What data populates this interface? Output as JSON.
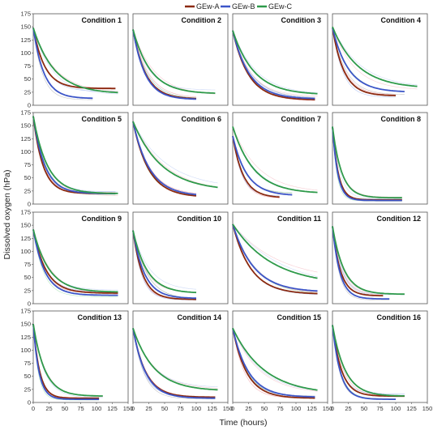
{
  "chart_data": {
    "type": "line",
    "xlabel": "Time (hours)",
    "ylabel": "Dissolved oxygen (hPa)",
    "xlim": [
      0,
      150
    ],
    "ylim": [
      0,
      175
    ],
    "x_ticks": [
      0,
      25,
      50,
      75,
      100,
      125,
      150
    ],
    "y_ticks": [
      0,
      25,
      50,
      75,
      100,
      125,
      150,
      175
    ],
    "grid": false,
    "legend_position": "top-center",
    "legend": [
      {
        "name": "GEw-A",
        "color": "#8b2a10"
      },
      {
        "name": "GEw-B",
        "color": "#3c55c8"
      },
      {
        "name": "GEw-C",
        "color": "#2e9a4a"
      }
    ],
    "panels": [
      {
        "title": "Condition 1",
        "series": [
          {
            "name": "GEw-A",
            "start": 148,
            "plateau": 32,
            "k": 0.055,
            "end_x": 130
          },
          {
            "name": "GEw-B",
            "start": 148,
            "plateau": 13,
            "k": 0.06,
            "end_x": 95
          },
          {
            "name": "GEw-C",
            "start": 148,
            "plateau": 22,
            "k": 0.03,
            "end_x": 135
          }
        ]
      },
      {
        "title": "Condition 2",
        "series": [
          {
            "name": "GEw-A",
            "start": 145,
            "plateau": 12,
            "k": 0.05,
            "end_x": 100
          },
          {
            "name": "GEw-B",
            "start": 145,
            "plateau": 11,
            "k": 0.052,
            "end_x": 100
          },
          {
            "name": "GEw-C",
            "start": 145,
            "plateau": 22,
            "k": 0.036,
            "end_x": 130
          }
        ]
      },
      {
        "title": "Condition 3",
        "series": [
          {
            "name": "GEw-A",
            "start": 143,
            "plateau": 10,
            "k": 0.04,
            "end_x": 130
          },
          {
            "name": "GEw-B",
            "start": 143,
            "plateau": 12,
            "k": 0.038,
            "end_x": 130
          },
          {
            "name": "GEw-C",
            "start": 143,
            "plateau": 20,
            "k": 0.03,
            "end_x": 135
          }
        ]
      },
      {
        "title": "Condition 4",
        "series": [
          {
            "name": "GEw-A",
            "start": 148,
            "plateau": 18,
            "k": 0.055,
            "end_x": 100
          },
          {
            "name": "GEw-B",
            "start": 148,
            "plateau": 25,
            "k": 0.04,
            "end_x": 115
          },
          {
            "name": "GEw-C",
            "start": 150,
            "plateau": 32,
            "k": 0.025,
            "end_x": 135
          }
        ]
      },
      {
        "title": "Condition 5",
        "series": [
          {
            "name": "GEw-A",
            "start": 168,
            "plateau": 20,
            "k": 0.065,
            "end_x": 130
          },
          {
            "name": "GEw-B",
            "start": 168,
            "plateau": 20,
            "k": 0.055,
            "end_x": 130
          },
          {
            "name": "GEw-C",
            "start": 168,
            "plateau": 20,
            "k": 0.045,
            "end_x": 135
          }
        ]
      },
      {
        "title": "Condition 6",
        "series": [
          {
            "name": "GEw-A",
            "start": 158,
            "plateau": 13,
            "k": 0.04,
            "end_x": 100
          },
          {
            "name": "GEw-B",
            "start": 158,
            "plateau": 15,
            "k": 0.038,
            "end_x": 100
          },
          {
            "name": "GEw-C",
            "start": 158,
            "plateau": 25,
            "k": 0.022,
            "end_x": 135
          }
        ]
      },
      {
        "title": "Condition 7",
        "series": [
          {
            "name": "GEw-A",
            "start": 130,
            "plateau": 12,
            "k": 0.06,
            "end_x": 75
          },
          {
            "name": "GEw-B",
            "start": 130,
            "plateau": 16,
            "k": 0.045,
            "end_x": 95
          },
          {
            "name": "GEw-C",
            "start": 148,
            "plateau": 20,
            "k": 0.03,
            "end_x": 135
          }
        ]
      },
      {
        "title": "Condition 8",
        "series": [
          {
            "name": "GEw-A",
            "start": 148,
            "plateau": 8,
            "k": 0.11,
            "end_x": 110
          },
          {
            "name": "GEw-B",
            "start": 148,
            "plateau": 7,
            "k": 0.12,
            "end_x": 110
          },
          {
            "name": "GEw-C",
            "start": 148,
            "plateau": 12,
            "k": 0.07,
            "end_x": 110
          }
        ]
      },
      {
        "title": "Condition 9",
        "series": [
          {
            "name": "GEw-A",
            "start": 142,
            "plateau": 20,
            "k": 0.05,
            "end_x": 135
          },
          {
            "name": "GEw-B",
            "start": 142,
            "plateau": 16,
            "k": 0.055,
            "end_x": 135
          },
          {
            "name": "GEw-C",
            "start": 142,
            "plateau": 22,
            "k": 0.04,
            "end_x": 135
          }
        ]
      },
      {
        "title": "Condition 10",
        "series": [
          {
            "name": "GEw-A",
            "start": 140,
            "plateau": 8,
            "k": 0.065,
            "end_x": 100
          },
          {
            "name": "GEw-B",
            "start": 140,
            "plateau": 10,
            "k": 0.055,
            "end_x": 100
          },
          {
            "name": "GEw-C",
            "start": 140,
            "plateau": 20,
            "k": 0.045,
            "end_x": 100
          }
        ]
      },
      {
        "title": "Condition 11",
        "series": [
          {
            "name": "GEw-A",
            "start": 152,
            "plateau": 18,
            "k": 0.035,
            "end_x": 135
          },
          {
            "name": "GEw-B",
            "start": 152,
            "plateau": 22,
            "k": 0.03,
            "end_x": 135
          },
          {
            "name": "GEw-C",
            "start": 152,
            "plateau": 35,
            "k": 0.016,
            "end_x": 135
          }
        ]
      },
      {
        "title": "Condition 12",
        "series": [
          {
            "name": "GEw-A",
            "start": 148,
            "plateau": 15,
            "k": 0.08,
            "end_x": 80
          },
          {
            "name": "GEw-B",
            "start": 148,
            "plateau": 9,
            "k": 0.085,
            "end_x": 90
          },
          {
            "name": "GEw-C",
            "start": 148,
            "plateau": 18,
            "k": 0.055,
            "end_x": 115
          }
        ]
      },
      {
        "title": "Condition 13",
        "series": [
          {
            "name": "GEw-A",
            "start": 150,
            "plateau": 8,
            "k": 0.1,
            "end_x": 105
          },
          {
            "name": "GEw-B",
            "start": 150,
            "plateau": 6,
            "k": 0.11,
            "end_x": 105
          },
          {
            "name": "GEw-C",
            "start": 150,
            "plateau": 12,
            "k": 0.055,
            "end_x": 110
          }
        ]
      },
      {
        "title": "Condition 14",
        "series": [
          {
            "name": "GEw-A",
            "start": 142,
            "plateau": 10,
            "k": 0.05,
            "end_x": 130
          },
          {
            "name": "GEw-B",
            "start": 142,
            "plateau": 8,
            "k": 0.05,
            "end_x": 130
          },
          {
            "name": "GEw-C",
            "start": 142,
            "plateau": 22,
            "k": 0.03,
            "end_x": 135
          }
        ]
      },
      {
        "title": "Condition 15",
        "series": [
          {
            "name": "GEw-A",
            "start": 142,
            "plateau": 8,
            "k": 0.045,
            "end_x": 130
          },
          {
            "name": "GEw-B",
            "start": 142,
            "plateau": 10,
            "k": 0.04,
            "end_x": 130
          },
          {
            "name": "GEw-C",
            "start": 142,
            "plateau": 15,
            "k": 0.02,
            "end_x": 135
          }
        ]
      },
      {
        "title": "Condition 16",
        "series": [
          {
            "name": "GEw-A",
            "start": 148,
            "plateau": 12,
            "k": 0.07,
            "end_x": 115
          },
          {
            "name": "GEw-B",
            "start": 148,
            "plateau": 6,
            "k": 0.08,
            "end_x": 100
          },
          {
            "name": "GEw-C",
            "start": 148,
            "plateau": 12,
            "k": 0.05,
            "end_x": 115
          }
        ]
      }
    ]
  }
}
